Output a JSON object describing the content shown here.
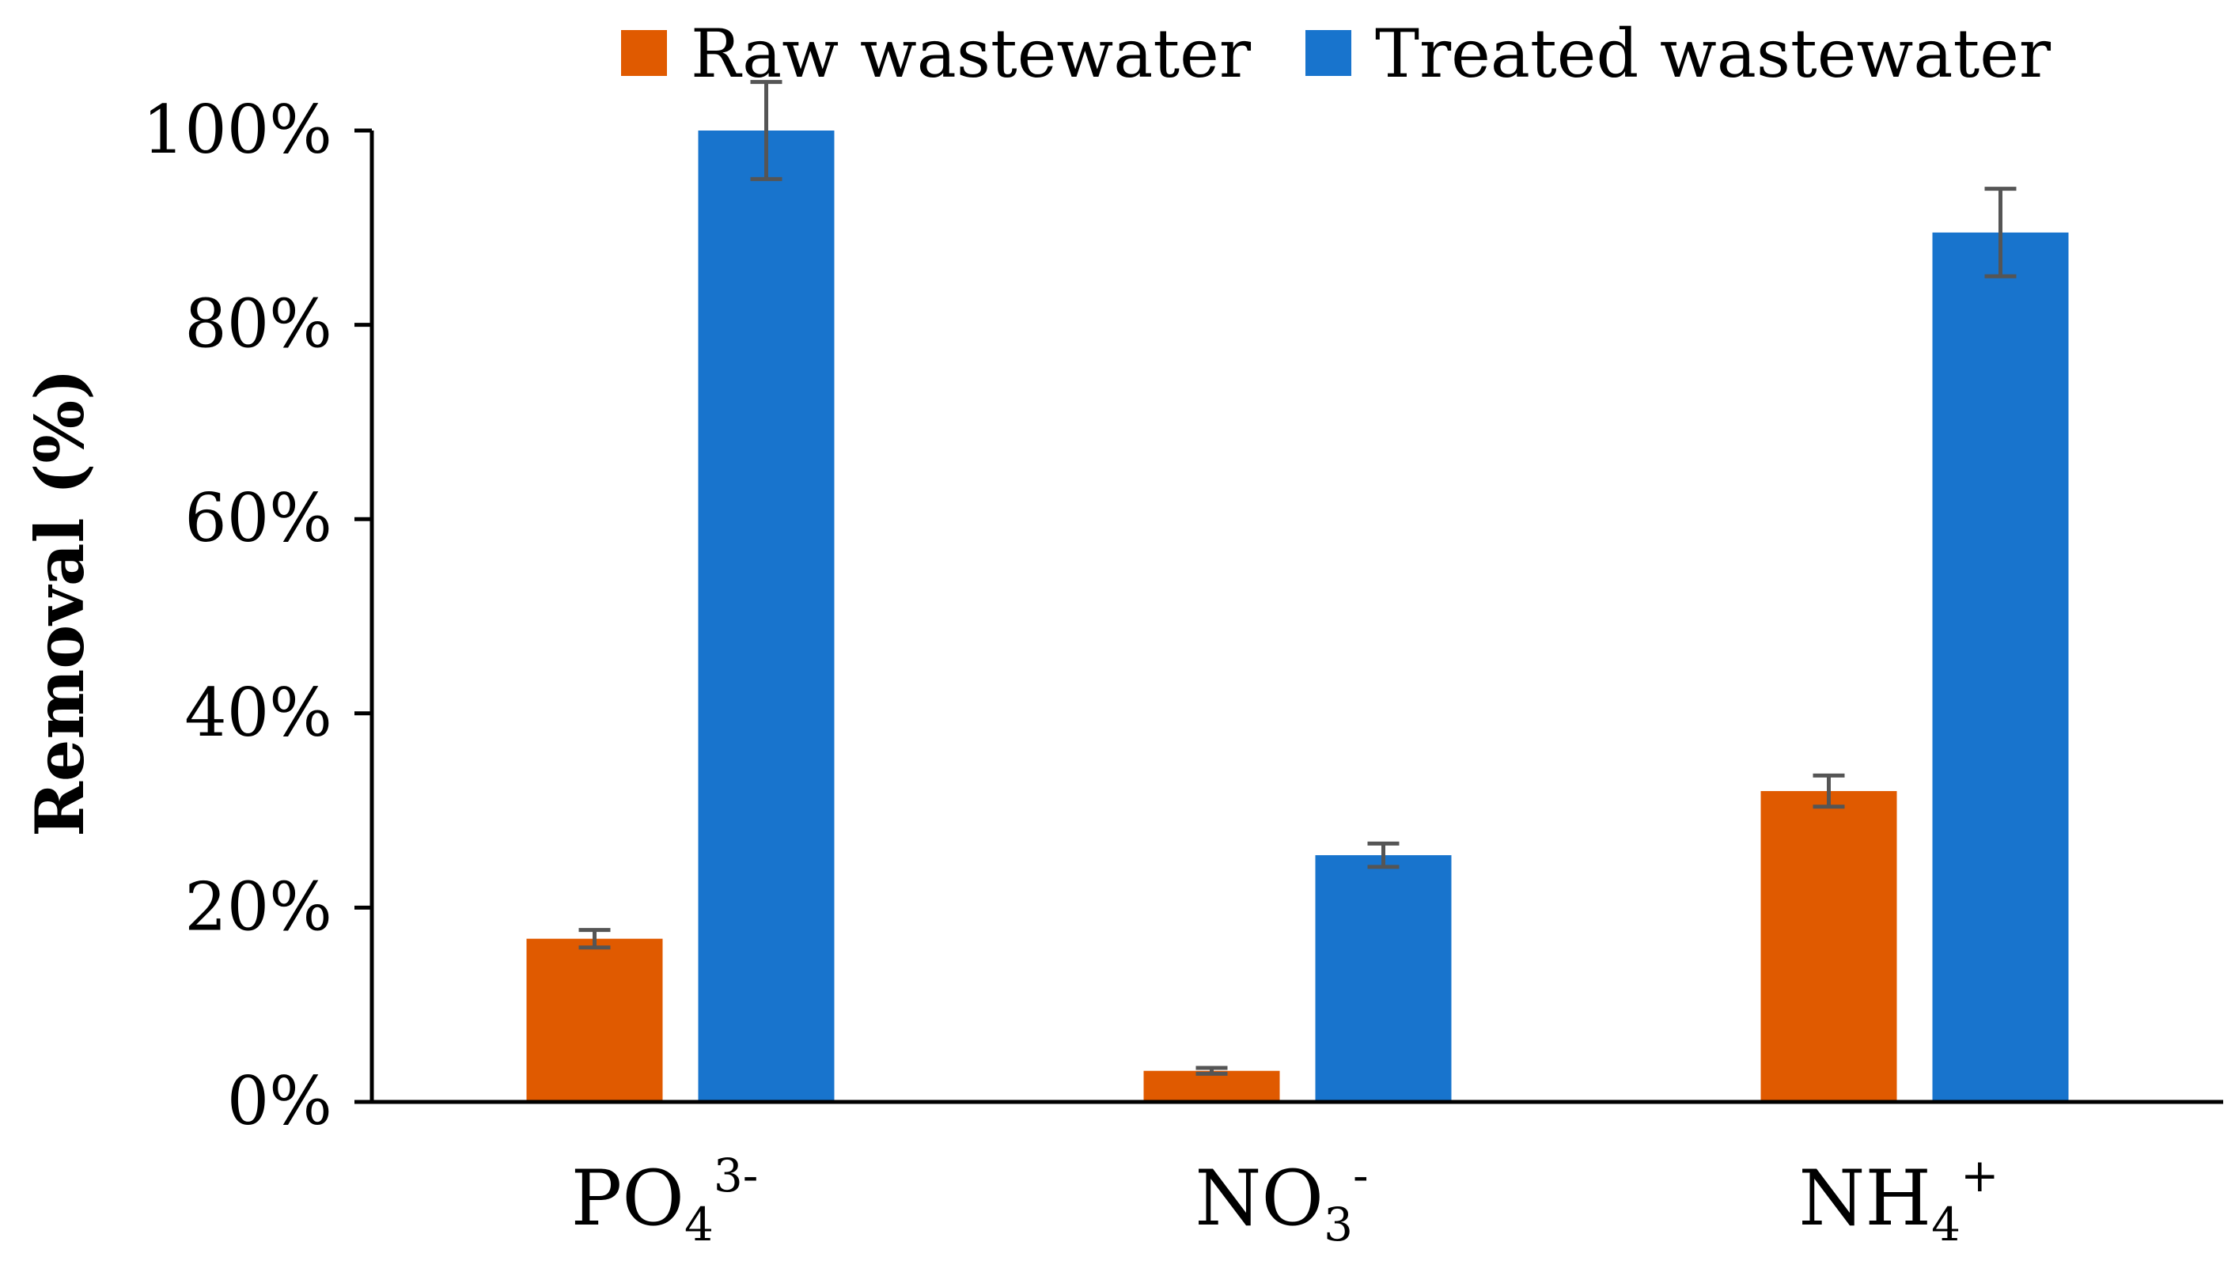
{
  "chart_data": {
    "type": "bar",
    "title": "",
    "xlabel": "",
    "ylabel": "Removal (%)",
    "ylim": [
      0,
      100
    ],
    "yticks": [
      0,
      20,
      40,
      60,
      80,
      100
    ],
    "ytick_labels": [
      "0%",
      "20%",
      "40%",
      "60%",
      "80%",
      "100%"
    ],
    "categories": [
      {
        "base": "PO",
        "sub": "4",
        "sup": "3-"
      },
      {
        "base": "NO",
        "sub": "3",
        "sup": "-"
      },
      {
        "base": "NH",
        "sub": "4",
        "sup": "+"
      }
    ],
    "series": [
      {
        "name": "Raw wastewater",
        "color": "#E05A00",
        "values": [
          16.8,
          3.2,
          32.0
        ],
        "errors": [
          0.9,
          0.3,
          1.6
        ]
      },
      {
        "name": "Treated wastewater",
        "color": "#1874CD",
        "values": [
          100.0,
          25.4,
          89.5
        ],
        "errors": [
          5.0,
          1.2,
          4.5
        ]
      }
    ],
    "error_bar_color": "#555555",
    "legend_position": "top"
  }
}
